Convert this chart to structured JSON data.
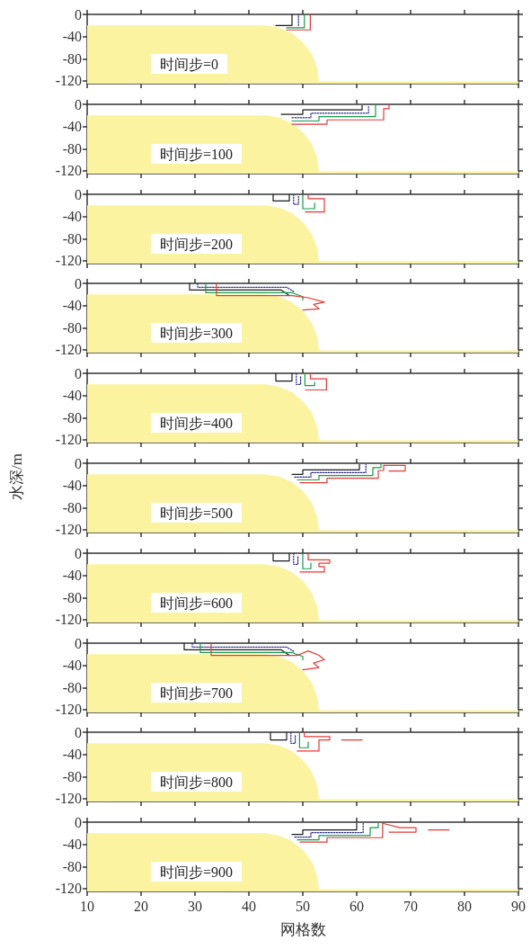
{
  "chart_data": [
    {
      "type": "line",
      "annotations": [
        "时间步=0"
      ],
      "xlim": [
        10,
        90
      ],
      "xticks": [
        10,
        20,
        30,
        40,
        50,
        60,
        70,
        80,
        90
      ],
      "ylim": [
        -125,
        0
      ],
      "yticks": [
        -120,
        -80,
        -40,
        0
      ],
      "tick_labels": "y",
      "marker": "none",
      "series": [
        {
          "type": "area",
          "color": "#fbf3a0",
          "x": [
            10,
            10,
            43,
            45.6,
            48,
            50.1,
            51.7,
            52.7,
            53,
            90
          ],
          "values": [
            -125,
            -20,
            -20,
            -24,
            -34,
            -51,
            -72,
            -98,
            -121,
            -121
          ]
        },
        {
          "color": "#1a1a1a",
          "line_style": "solid",
          "x": [
            45,
            48,
            48
          ],
          "values": [
            -20,
            -20,
            0
          ]
        },
        {
          "color": "#2a2a8a",
          "line_style": "dotted",
          "x": [
            49.2,
            49.2
          ],
          "values": [
            -20,
            0
          ]
        },
        {
          "color": "#139a48",
          "line_style": "solid",
          "x": [
            47,
            50.3,
            50.3
          ],
          "values": [
            -24,
            -24,
            0
          ]
        },
        {
          "color": "#e53935",
          "line_style": "solid",
          "x": [
            47,
            51.4,
            51.4
          ],
          "values": [
            -28,
            -28,
            0
          ]
        }
      ]
    },
    {
      "type": "line",
      "annotations": [
        "时间步=100"
      ],
      "xlim": [
        10,
        90
      ],
      "xticks": [
        10,
        20,
        30,
        40,
        50,
        60,
        70,
        80,
        90
      ],
      "ylim": [
        -125,
        0
      ],
      "yticks": [
        -120,
        -80,
        -40,
        0
      ],
      "tick_labels": "y",
      "marker": "none",
      "series": [
        {
          "type": "area",
          "color": "#fbf3a0",
          "x": [
            10,
            10,
            43,
            45.6,
            48,
            50.1,
            51.7,
            52.7,
            53,
            90
          ],
          "values": [
            -125,
            -20,
            -20,
            -24,
            -34,
            -51,
            -72,
            -98,
            -121,
            -121
          ]
        },
        {
          "color": "#1a1a1a",
          "line_style": "solid",
          "x": [
            46,
            50,
            50,
            61,
            61
          ],
          "values": [
            -18,
            -18,
            -10,
            -10,
            -2
          ]
        },
        {
          "color": "#2a2a8a",
          "line_style": "dotted",
          "x": [
            48,
            51.5,
            51.5,
            62.2,
            62.2
          ],
          "values": [
            -24,
            -24,
            -16,
            -16,
            -2
          ]
        },
        {
          "color": "#139a48",
          "line_style": "solid",
          "x": [
            48,
            53,
            53,
            63.5,
            63.5
          ],
          "values": [
            -30,
            -30,
            -22,
            -22,
            0
          ]
        },
        {
          "color": "#e53935",
          "line_style": "solid",
          "x": [
            48,
            54.5,
            54.5,
            65,
            65,
            66,
            66
          ],
          "values": [
            -36,
            -36,
            -28,
            -28,
            -8,
            -8,
            0
          ]
        }
      ]
    },
    {
      "type": "line",
      "annotations": [
        "时间步=200"
      ],
      "xlim": [
        10,
        90
      ],
      "xticks": [
        10,
        20,
        30,
        40,
        50,
        60,
        70,
        80,
        90
      ],
      "ylim": [
        -125,
        0
      ],
      "yticks": [
        -120,
        -80,
        -40,
        0
      ],
      "tick_labels": "y",
      "marker": "none",
      "series": [
        {
          "type": "area",
          "color": "#fbf3a0",
          "x": [
            10,
            10,
            43,
            45.6,
            48,
            50.1,
            51.7,
            52.7,
            53,
            90
          ],
          "values": [
            -125,
            -20,
            -20,
            -24,
            -34,
            -51,
            -72,
            -98,
            -121,
            -121
          ]
        },
        {
          "color": "#1a1a1a",
          "line_style": "solid",
          "x": [
            44.5,
            44.5,
            47.5,
            47.5
          ],
          "values": [
            0,
            -12,
            -12,
            0
          ]
        },
        {
          "color": "#2a2a8a",
          "line_style": "dotted",
          "x": [
            48.3,
            48.3,
            49.2,
            49.2
          ],
          "values": [
            0,
            -18,
            -18,
            -4
          ]
        },
        {
          "color": "#139a48",
          "line_style": "solid",
          "x": [
            50,
            50,
            52.2,
            52.2
          ],
          "values": [
            0,
            -26,
            -26,
            -16
          ]
        },
        {
          "color": "#e53935",
          "line_style": "solid",
          "x": [
            51,
            51,
            54,
            54,
            50.5
          ],
          "values": [
            0,
            -8,
            -8,
            -32,
            -32
          ]
        }
      ]
    },
    {
      "type": "line",
      "annotations": [
        "时间步=300"
      ],
      "xlim": [
        10,
        90
      ],
      "xticks": [
        10,
        20,
        30,
        40,
        50,
        60,
        70,
        80,
        90
      ],
      "ylim": [
        -125,
        0
      ],
      "yticks": [
        -120,
        -80,
        -40,
        0
      ],
      "tick_labels": "y",
      "marker": "none",
      "series": [
        {
          "type": "area",
          "color": "#fbf3a0",
          "x": [
            10,
            10,
            43,
            45.6,
            48,
            50.1,
            51.7,
            52.7,
            53,
            90
          ],
          "values": [
            -125,
            -20,
            -20,
            -24,
            -34,
            -51,
            -72,
            -98,
            -121,
            -121
          ]
        },
        {
          "color": "#1a1a1a",
          "line_style": "solid",
          "x": [
            29,
            29,
            46,
            47.5
          ],
          "values": [
            0,
            -12,
            -12,
            -22
          ]
        },
        {
          "color": "#2a2a8a",
          "line_style": "dotted",
          "x": [
            30.5,
            30.5,
            47,
            48.5
          ],
          "values": [
            0,
            -7,
            -7,
            -16
          ]
        },
        {
          "color": "#139a48",
          "line_style": "solid",
          "x": [
            32,
            32,
            48,
            50,
            50
          ],
          "values": [
            0,
            -17,
            -17,
            -24,
            -30
          ]
        },
        {
          "color": "#e53935",
          "line_style": "solid",
          "x": [
            34,
            34,
            48,
            51,
            54,
            52,
            53,
            50
          ],
          "values": [
            0,
            -22,
            -22,
            -26,
            -34,
            -38,
            -46,
            -48
          ]
        }
      ]
    },
    {
      "type": "line",
      "annotations": [
        "时间步=400"
      ],
      "xlim": [
        10,
        90
      ],
      "xticks": [
        10,
        20,
        30,
        40,
        50,
        60,
        70,
        80,
        90
      ],
      "ylim": [
        -125,
        0
      ],
      "yticks": [
        -120,
        -80,
        -40,
        0
      ],
      "tick_labels": "y",
      "marker": "none",
      "series": [
        {
          "type": "area",
          "color": "#fbf3a0",
          "x": [
            10,
            10,
            43,
            45.6,
            48,
            50.1,
            51.7,
            52.7,
            53,
            90
          ],
          "values": [
            -125,
            -20,
            -20,
            -24,
            -34,
            -51,
            -72,
            -98,
            -121,
            -121
          ]
        },
        {
          "color": "#1a1a1a",
          "line_style": "solid",
          "x": [
            45,
            45,
            48,
            48
          ],
          "values": [
            0,
            -14,
            -14,
            0
          ]
        },
        {
          "color": "#2a2a8a",
          "line_style": "dotted",
          "x": [
            48.8,
            48.8,
            49.6,
            49.6
          ],
          "values": [
            0,
            -20,
            -20,
            -4
          ]
        },
        {
          "color": "#139a48",
          "line_style": "solid",
          "x": [
            50.4,
            50.4,
            52.2,
            52.2
          ],
          "values": [
            0,
            -22,
            -22,
            -16
          ]
        },
        {
          "color": "#e53935",
          "line_style": "solid",
          "x": [
            51.4,
            51.4,
            54.4,
            54.4,
            50.5
          ],
          "values": [
            0,
            -10,
            -10,
            -30,
            -30
          ]
        }
      ]
    },
    {
      "type": "line",
      "annotations": [
        "时间步=500"
      ],
      "ylabel": "水深/m",
      "xlim": [
        10,
        90
      ],
      "xticks": [
        10,
        20,
        30,
        40,
        50,
        60,
        70,
        80,
        90
      ],
      "ylim": [
        -125,
        0
      ],
      "yticks": [
        -120,
        -80,
        -40,
        0
      ],
      "tick_labels": "y",
      "marker": "none",
      "series": [
        {
          "type": "area",
          "color": "#fbf3a0",
          "x": [
            10,
            10,
            43,
            45.6,
            48,
            50.1,
            51.7,
            52.7,
            53,
            90
          ],
          "values": [
            -125,
            -20,
            -20,
            -24,
            -34,
            -51,
            -72,
            -98,
            -121,
            -121
          ]
        },
        {
          "color": "#1a1a1a",
          "line_style": "solid",
          "x": [
            48,
            50,
            50,
            60.5,
            60.5
          ],
          "values": [
            -20,
            -20,
            -12,
            -12,
            -2
          ]
        },
        {
          "color": "#2a2a8a",
          "line_style": "dotted",
          "x": [
            48.5,
            51.5,
            51.5,
            61.7,
            61.7
          ],
          "values": [
            -25,
            -25,
            -17,
            -17,
            -2
          ]
        },
        {
          "color": "#139a48",
          "line_style": "solid",
          "x": [
            49,
            53,
            53,
            63,
            63,
            64.5,
            64.5
          ],
          "values": [
            -30,
            -30,
            -22,
            -22,
            -8,
            -8,
            0
          ]
        },
        {
          "color": "#e53935",
          "line_style": "solid",
          "x": [
            49.5,
            54.5,
            54.5,
            64,
            64,
            65,
            65,
            69,
            69,
            66
          ],
          "values": [
            -35,
            -35,
            -27,
            -27,
            -13,
            -13,
            -4,
            -4,
            -14,
            -14
          ]
        }
      ]
    },
    {
      "type": "line",
      "annotations": [
        "时间步=600"
      ],
      "xlim": [
        10,
        90
      ],
      "xticks": [
        10,
        20,
        30,
        40,
        50,
        60,
        70,
        80,
        90
      ],
      "ylim": [
        -125,
        0
      ],
      "yticks": [
        -120,
        -80,
        -40,
        0
      ],
      "tick_labels": "y",
      "marker": "none",
      "series": [
        {
          "type": "area",
          "color": "#fbf3a0",
          "x": [
            10,
            10,
            43,
            45.6,
            48,
            50.1,
            51.7,
            52.7,
            53,
            90
          ],
          "values": [
            -125,
            -20,
            -20,
            -24,
            -34,
            -51,
            -72,
            -98,
            -121,
            -121
          ]
        },
        {
          "color": "#1a1a1a",
          "line_style": "solid",
          "x": [
            44.5,
            44.5,
            47.5,
            47.5
          ],
          "values": [
            0,
            -14,
            -14,
            0
          ]
        },
        {
          "color": "#2a2a8a",
          "line_style": "dotted",
          "x": [
            48.3,
            48.3,
            49.1,
            49.1
          ],
          "values": [
            0,
            -20,
            -20,
            -4
          ]
        },
        {
          "color": "#139a48",
          "line_style": "solid",
          "x": [
            50,
            50,
            51.5,
            51.5
          ],
          "values": [
            0,
            -28,
            -28,
            -18
          ]
        },
        {
          "color": "#e53935",
          "line_style": "solid",
          "x": [
            51,
            51,
            55,
            55,
            53,
            53,
            54,
            54,
            49.5
          ],
          "values": [
            0,
            -12,
            -12,
            -18,
            -18,
            -24,
            -24,
            -34,
            -34
          ]
        }
      ]
    },
    {
      "type": "line",
      "annotations": [
        "时间步=700"
      ],
      "xlim": [
        10,
        90
      ],
      "xticks": [
        10,
        20,
        30,
        40,
        50,
        60,
        70,
        80,
        90
      ],
      "ylim": [
        -125,
        0
      ],
      "yticks": [
        -120,
        -80,
        -40,
        0
      ],
      "tick_labels": "y",
      "marker": "none",
      "series": [
        {
          "type": "area",
          "color": "#fbf3a0",
          "x": [
            10,
            10,
            43,
            45.6,
            48,
            50.1,
            51.7,
            52.7,
            53,
            90
          ],
          "values": [
            -125,
            -20,
            -20,
            -24,
            -34,
            -51,
            -72,
            -98,
            -121,
            -121
          ]
        },
        {
          "color": "#1a1a1a",
          "line_style": "solid",
          "x": [
            28,
            28,
            46,
            47.5
          ],
          "values": [
            0,
            -12,
            -12,
            -22
          ]
        },
        {
          "color": "#2a2a8a",
          "line_style": "dotted",
          "x": [
            29.5,
            29.5,
            47,
            48.5
          ],
          "values": [
            0,
            -7,
            -7,
            -16
          ]
        },
        {
          "color": "#139a48",
          "line_style": "solid",
          "x": [
            31,
            31,
            48,
            50,
            50
          ],
          "values": [
            0,
            -17,
            -17,
            -24,
            -30
          ]
        },
        {
          "color": "#e53935",
          "line_style": "solid",
          "x": [
            33,
            33,
            49,
            51,
            53,
            54,
            52,
            53,
            50
          ],
          "values": [
            0,
            -22,
            -22,
            -14,
            -22,
            -30,
            -36,
            -44,
            -48
          ]
        }
      ]
    },
    {
      "type": "line",
      "annotations": [
        "时间步=800"
      ],
      "xlim": [
        10,
        90
      ],
      "xticks": [
        10,
        20,
        30,
        40,
        50,
        60,
        70,
        80,
        90
      ],
      "ylim": [
        -125,
        0
      ],
      "yticks": [
        -120,
        -80,
        -40,
        0
      ],
      "tick_labels": "y",
      "marker": "none",
      "series": [
        {
          "type": "area",
          "color": "#fbf3a0",
          "x": [
            10,
            10,
            43,
            45.6,
            48,
            50.1,
            51.7,
            52.7,
            53,
            90
          ],
          "values": [
            -125,
            -20,
            -20,
            -24,
            -34,
            -51,
            -72,
            -98,
            -121,
            -121
          ]
        },
        {
          "color": "#1a1a1a",
          "line_style": "solid",
          "x": [
            44,
            44,
            47,
            47
          ],
          "values": [
            0,
            -14,
            -14,
            0
          ]
        },
        {
          "color": "#2a2a8a",
          "line_style": "dotted",
          "x": [
            47.8,
            47.8,
            48.6,
            48.6
          ],
          "values": [
            0,
            -20,
            -20,
            -4
          ]
        },
        {
          "color": "#139a48",
          "line_style": "solid",
          "x": [
            49.4,
            49.4,
            51,
            51
          ],
          "values": [
            0,
            -28,
            -28,
            -18
          ]
        },
        {
          "color": "#e53935",
          "line_style": "solid",
          "x": [
            50.3,
            50.3,
            55,
            55,
            53,
            53,
            49
          ],
          "values": [
            0,
            -8,
            -8,
            -14,
            -14,
            -34,
            -34
          ]
        },
        {
          "color": "#e53935",
          "line_style": "solid",
          "x": [
            57.2,
            61
          ],
          "values": [
            -14,
            -14
          ]
        }
      ]
    },
    {
      "type": "line",
      "annotations": [
        "时间步=900"
      ],
      "xlabel": "网格数",
      "xlim": [
        10,
        90
      ],
      "xticks": [
        10,
        20,
        30,
        40,
        50,
        60,
        70,
        80,
        90
      ],
      "ylim": [
        -125,
        0
      ],
      "yticks": [
        -120,
        -80,
        -40,
        0
      ],
      "marker": "none",
      "series": [
        {
          "type": "area",
          "color": "#fbf3a0",
          "x": [
            10,
            10,
            43,
            45.6,
            48,
            50.1,
            51.7,
            52.7,
            53,
            90
          ],
          "values": [
            -125,
            -20,
            -20,
            -24,
            -34,
            -51,
            -72,
            -98,
            -121,
            -121
          ]
        },
        {
          "color": "#1a1a1a",
          "line_style": "solid",
          "x": [
            48,
            50,
            50,
            60,
            60
          ],
          "values": [
            -22,
            -22,
            -14,
            -14,
            -2
          ]
        },
        {
          "color": "#2a2a8a",
          "line_style": "dotted",
          "x": [
            48.5,
            51.5,
            51.5,
            61.2,
            61.2
          ],
          "values": [
            -27,
            -27,
            -19,
            -19,
            -2
          ]
        },
        {
          "color": "#139a48",
          "line_style": "solid",
          "x": [
            49,
            53,
            53,
            62.5,
            62.5,
            64,
            64
          ],
          "values": [
            -32,
            -32,
            -24,
            -24,
            -10,
            -10,
            -2
          ]
        },
        {
          "color": "#e53935",
          "line_style": "solid",
          "x": [
            49.5,
            54.5,
            54.5,
            64.8,
            64.8,
            68,
            71,
            71,
            66
          ],
          "values": [
            -36,
            -36,
            -28,
            -28,
            -2,
            -10,
            -10,
            -18,
            -18
          ]
        },
        {
          "color": "#e53935",
          "line_style": "solid",
          "x": [
            73.3,
            77.1
          ],
          "values": [
            -14,
            -14
          ]
        }
      ]
    }
  ]
}
